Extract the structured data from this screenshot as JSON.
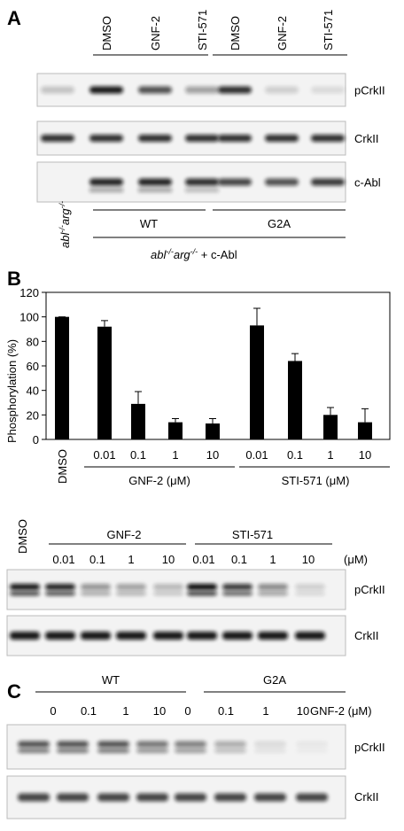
{
  "panel_a": {
    "letter": "A",
    "lanes": [
      "DMSO",
      "GNF-2",
      "STI-571",
      "DMSO",
      "GNF-2",
      "STI-571"
    ],
    "blots": [
      "pCrkII",
      "CrkII",
      "c-Abl"
    ],
    "groups": [
      "WT",
      "G2A"
    ],
    "control": [
      "abl",
      "-/-",
      "arg",
      "-/-"
    ],
    "rescue": [
      "abl",
      "-/-",
      "arg",
      "-/-",
      " + c-Abl"
    ]
  },
  "panel_b": {
    "letter": "B",
    "control": "DMSO",
    "groups": [
      "GNF-2",
      "STI-571"
    ],
    "doses": [
      "0.01",
      "0.1",
      "1",
      "10",
      "0.01",
      "0.1",
      "1",
      "10"
    ],
    "unit": "(μM)",
    "blots": [
      "pCrkII",
      "CrkII"
    ]
  },
  "chart_data": {
    "type": "bar",
    "y_label": "Phosphorylation (%)",
    "categories": [
      "DMSO",
      "0.01",
      "0.1",
      "1",
      "10",
      "0.01",
      "0.1",
      "1",
      "10"
    ],
    "group_labels": [
      "GNF-2 (μM)",
      "STI-571 (μM)"
    ],
    "values": [
      100,
      92,
      29,
      14,
      13,
      93,
      64,
      20,
      14
    ],
    "errors": [
      0,
      5,
      10,
      3,
      4,
      14,
      6,
      6,
      11
    ],
    "color": "#000000",
    "ylim": [
      0,
      120
    ],
    "yticks": [
      0,
      20,
      40,
      60,
      80,
      100,
      120
    ]
  },
  "panel_c": {
    "letter": "C",
    "groups": [
      "WT",
      "G2A"
    ],
    "doses": [
      "0",
      "0.1",
      "1",
      "10",
      "0",
      "0.1",
      "1",
      "10"
    ],
    "dose_label": "GNF-2 (μM)",
    "blots": [
      "pCrkII",
      "CrkII"
    ]
  }
}
